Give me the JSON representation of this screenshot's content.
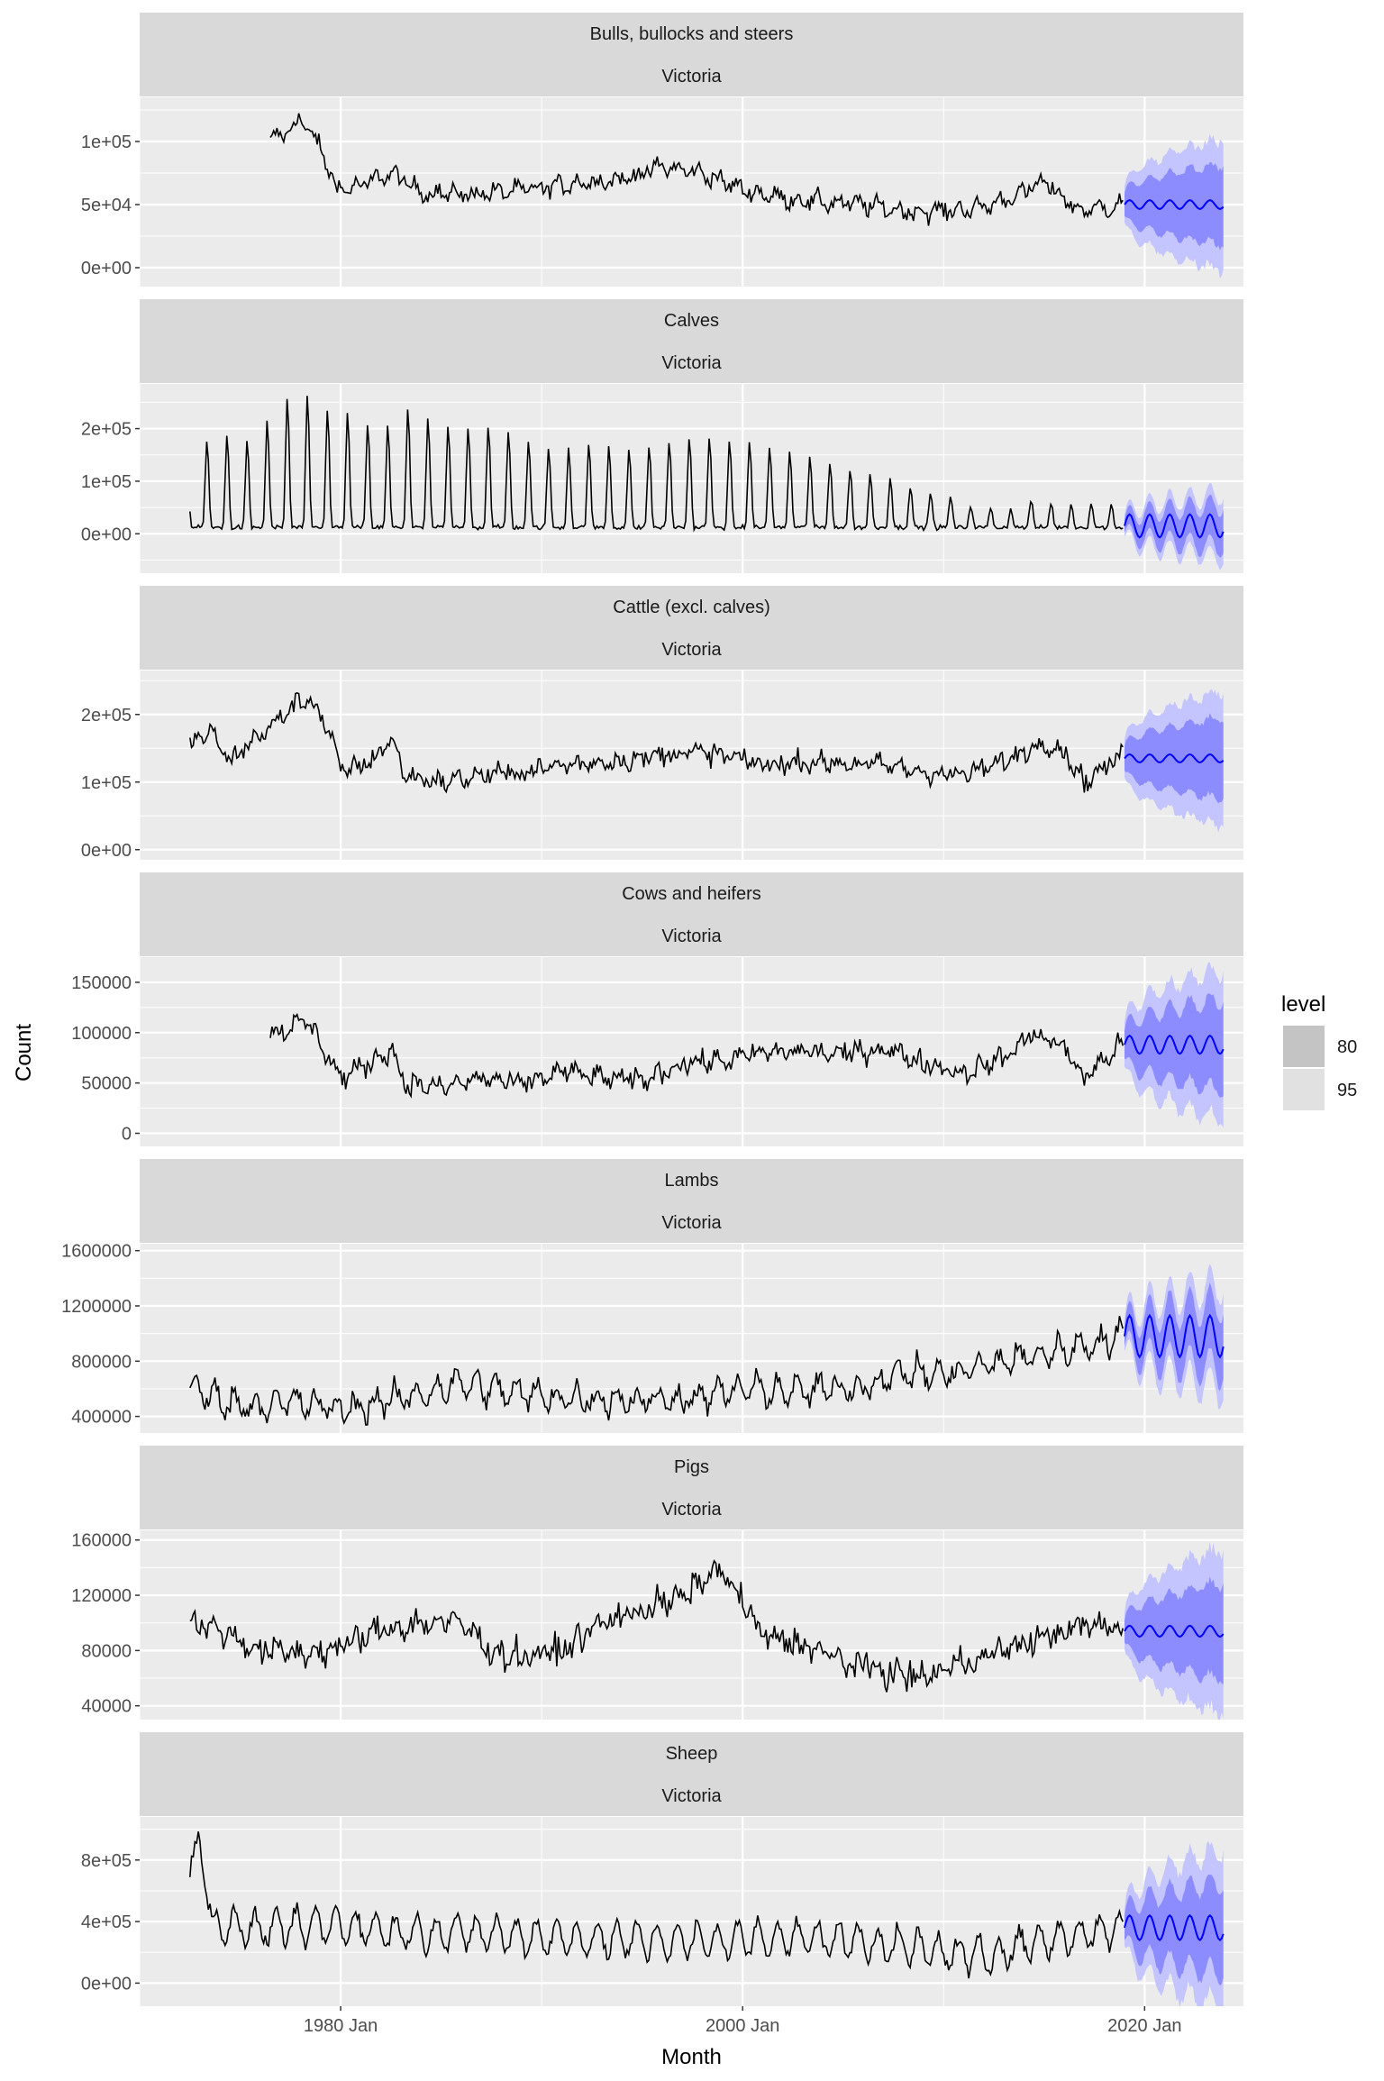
{
  "chart_data": {
    "type": "line",
    "subtype": "faceted time series with forecast fan",
    "xlabel": "Month",
    "ylabel": "Count",
    "x_ticks": [
      "1980 Jan",
      "2000 Jan",
      "2020 Jan"
    ],
    "x_range": [
      "1970 Jan",
      "2024 Dec"
    ],
    "observed_range": [
      "1972 Jul",
      "2018 Dec"
    ],
    "forecast_range": [
      "2019 Jan",
      "2023 Dec"
    ],
    "grid": true,
    "legend": {
      "title": "level",
      "placement": "right",
      "entries": [
        {
          "label": "80",
          "color": "#c4c4c4"
        },
        {
          "label": "95",
          "color": "#e1e1e1"
        }
      ]
    },
    "colors": {
      "observed_line": "#000000",
      "forecast_line": "#0000ff",
      "band_80": "#8c8cff",
      "band_95": "#c4c4ff",
      "panel_bg": "#ebebeb",
      "strip_bg": "#d9d9d9",
      "grid": "#ffffff"
    },
    "facets": [
      {
        "strip": [
          "Bulls, bullocks and steers",
          "Victoria"
        ],
        "ylim": [
          -15000,
          135000
        ],
        "y_ticks": [
          0,
          50000,
          100000
        ],
        "y_tick_labels": [
          "0e+00",
          "5e+04",
          "1e+05"
        ],
        "observed_start": "1976 Jul",
        "observed_anchors": [
          [
            1976.5,
            100000
          ],
          [
            1977.5,
            110000
          ],
          [
            1978.0,
            118000
          ],
          [
            1979.0,
            95000
          ],
          [
            1979.7,
            65000
          ],
          [
            1980.5,
            62000
          ],
          [
            1982.5,
            75000
          ],
          [
            1984.0,
            60000
          ],
          [
            1986.0,
            58000
          ],
          [
            1988.0,
            60000
          ],
          [
            1990.0,
            63000
          ],
          [
            1992.0,
            68000
          ],
          [
            1994.0,
            70000
          ],
          [
            1996.0,
            80000
          ],
          [
            1998.0,
            75000
          ],
          [
            2000.0,
            62000
          ],
          [
            2002.0,
            55000
          ],
          [
            2004.0,
            52000
          ],
          [
            2006.0,
            50000
          ],
          [
            2008.0,
            45000
          ],
          [
            2010.0,
            45000
          ],
          [
            2012.0,
            48000
          ],
          [
            2014.0,
            60000
          ],
          [
            2015.0,
            68000
          ],
          [
            2016.0,
            55000
          ],
          [
            2016.8,
            45000
          ],
          [
            2018.9,
            50000
          ]
        ],
        "seasonal_amplitude": 4000,
        "noise": 4500,
        "forecast": {
          "level": 50000,
          "seasonal_amplitude": 3500,
          "band80_halfwidth": [
            9000,
            32000
          ],
          "band95_halfwidth": [
            14000,
            52000
          ]
        }
      },
      {
        "strip": [
          "Calves",
          "Victoria"
        ],
        "ylim": [
          -75000,
          285000
        ],
        "y_ticks": [
          0,
          100000,
          200000
        ],
        "y_tick_labels": [
          "0e+00",
          "1e+05",
          "2e+05"
        ],
        "observed_start": "1972 Jul",
        "observed_anchors": [
          [
            1972.5,
            25000
          ],
          [
            2018.9,
            20000
          ]
        ],
        "seasonal_peaks": [
          [
            1972.5,
            170000
          ],
          [
            1974.0,
            190000
          ],
          [
            1975.0,
            170000
          ],
          [
            1976.0,
            210000
          ],
          [
            1977.0,
            260000
          ],
          [
            1978.0,
            265000
          ],
          [
            1979.0,
            240000
          ],
          [
            1980.0,
            235000
          ],
          [
            1981.0,
            210000
          ],
          [
            1982.0,
            200000
          ],
          [
            1983.0,
            245000
          ],
          [
            1984.0,
            225000
          ],
          [
            1985.0,
            205000
          ],
          [
            1986.0,
            205000
          ],
          [
            1987.0,
            210000
          ],
          [
            1988.0,
            200000
          ],
          [
            1989.0,
            180000
          ],
          [
            1990.0,
            165000
          ],
          [
            1991.0,
            165000
          ],
          [
            1992.0,
            170000
          ],
          [
            1993.0,
            170000
          ],
          [
            1994.0,
            160000
          ],
          [
            1995.0,
            165000
          ],
          [
            1996.0,
            175000
          ],
          [
            1997.0,
            185000
          ],
          [
            1998.0,
            185000
          ],
          [
            1999.0,
            175000
          ],
          [
            2000.0,
            180000
          ],
          [
            2001.0,
            170000
          ],
          [
            2002.0,
            160000
          ],
          [
            2003.0,
            150000
          ],
          [
            2004.0,
            140000
          ],
          [
            2005.0,
            125000
          ],
          [
            2006.0,
            115000
          ],
          [
            2007.0,
            110000
          ],
          [
            2008.0,
            95000
          ],
          [
            2009.0,
            80000
          ],
          [
            2010.0,
            75000
          ],
          [
            2011.0,
            55000
          ],
          [
            2012.0,
            50000
          ],
          [
            2013.0,
            45000
          ],
          [
            2014.0,
            65000
          ],
          [
            2015.0,
            60000
          ],
          [
            2016.0,
            55000
          ],
          [
            2017.0,
            60000
          ],
          [
            2018.0,
            55000
          ]
        ],
        "noise": 3000,
        "forecast": {
          "level": 15000,
          "seasonal_amplitude": 22000,
          "band80_halfwidth": [
            12000,
            40000
          ],
          "band95_halfwidth": [
            20000,
            60000
          ]
        }
      },
      {
        "strip": [
          "Cattle (excl. calves)",
          "Victoria"
        ],
        "ylim": [
          -15000,
          265000
        ],
        "y_ticks": [
          0,
          100000,
          200000
        ],
        "y_tick_labels": [
          "0e+00",
          "1e+05",
          "2e+05"
        ],
        "observed_start": "1972 Jul",
        "observed_anchors": [
          [
            1972.5,
            155000
          ],
          [
            1973.5,
            175000
          ],
          [
            1974.5,
            130000
          ],
          [
            1975.5,
            160000
          ],
          [
            1976.5,
            180000
          ],
          [
            1977.5,
            210000
          ],
          [
            1978.5,
            225000
          ],
          [
            1979.5,
            170000
          ],
          [
            1980.0,
            115000
          ],
          [
            1981.5,
            130000
          ],
          [
            1982.5,
            165000
          ],
          [
            1983.2,
            110000
          ],
          [
            1985.0,
            100000
          ],
          [
            1987.0,
            110000
          ],
          [
            1989.0,
            115000
          ],
          [
            1991.0,
            125000
          ],
          [
            1993.0,
            130000
          ],
          [
            1995.0,
            135000
          ],
          [
            1997.0,
            145000
          ],
          [
            1999.0,
            140000
          ],
          [
            2001.0,
            125000
          ],
          [
            2003.0,
            130000
          ],
          [
            2005.0,
            128000
          ],
          [
            2007.0,
            125000
          ],
          [
            2009.0,
            115000
          ],
          [
            2011.0,
            110000
          ],
          [
            2013.0,
            130000
          ],
          [
            2015.0,
            160000
          ],
          [
            2016.0,
            145000
          ],
          [
            2017.0,
            100000
          ],
          [
            2018.9,
            140000
          ]
        ],
        "seasonal_amplitude": 6000,
        "noise": 10000,
        "forecast": {
          "level": 135000,
          "seasonal_amplitude": 6000,
          "band80_halfwidth": [
            18000,
            60000
          ],
          "band95_halfwidth": [
            28000,
            100000
          ]
        }
      },
      {
        "strip": [
          "Cows and heifers",
          "Victoria"
        ],
        "ylim": [
          -13000,
          175000
        ],
        "y_ticks": [
          0,
          50000,
          100000,
          150000
        ],
        "y_tick_labels": [
          "0",
          "50000",
          "100000",
          "150000"
        ],
        "observed_start": "1976 Jul",
        "observed_anchors": [
          [
            1976.5,
            100000
          ],
          [
            1977.5,
            105000
          ],
          [
            1978.3,
            112000
          ],
          [
            1979.0,
            90000
          ],
          [
            1980.0,
            55000
          ],
          [
            1981.5,
            70000
          ],
          [
            1982.5,
            85000
          ],
          [
            1983.2,
            50000
          ],
          [
            1985.0,
            45000
          ],
          [
            1987.0,
            55000
          ],
          [
            1989.0,
            48000
          ],
          [
            1991.0,
            62000
          ],
          [
            1993.0,
            55000
          ],
          [
            1995.0,
            52000
          ],
          [
            1997.0,
            70000
          ],
          [
            1999.0,
            72000
          ],
          [
            2001.0,
            80000
          ],
          [
            2003.0,
            82000
          ],
          [
            2005.0,
            78000
          ],
          [
            2007.0,
            85000
          ],
          [
            2009.0,
            70000
          ],
          [
            2011.0,
            60000
          ],
          [
            2013.0,
            75000
          ],
          [
            2014.5,
            100000
          ],
          [
            2016.0,
            85000
          ],
          [
            2017.0,
            55000
          ],
          [
            2018.9,
            90000
          ]
        ],
        "seasonal_amplitude": 4000,
        "noise": 7000,
        "forecast": {
          "level": 88000,
          "seasonal_amplitude": 9000,
          "band80_halfwidth": [
            14000,
            45000
          ],
          "band95_halfwidth": [
            22000,
            75000
          ]
        }
      },
      {
        "strip": [
          "Lambs",
          "Victoria"
        ],
        "ylim": [
          280000,
          1650000
        ],
        "y_ticks": [
          400000,
          800000,
          1200000,
          1600000
        ],
        "y_tick_labels": [
          "400000",
          "800000",
          "1200000",
          "1600000"
        ],
        "observed_start": "1972 Jul",
        "observed_anchors": [
          [
            1972.5,
            600000
          ],
          [
            1975.0,
            480000
          ],
          [
            1978.0,
            500000
          ],
          [
            1980.0,
            450000
          ],
          [
            1983.0,
            530000
          ],
          [
            1986.0,
            640000
          ],
          [
            1989.0,
            560000
          ],
          [
            1992.0,
            530000
          ],
          [
            1995.0,
            520000
          ],
          [
            1998.0,
            540000
          ],
          [
            2000.0,
            600000
          ],
          [
            2003.0,
            580000
          ],
          [
            2006.0,
            620000
          ],
          [
            2008.0,
            720000
          ],
          [
            2010.0,
            700000
          ],
          [
            2013.0,
            800000
          ],
          [
            2016.0,
            880000
          ],
          [
            2018.9,
            980000
          ]
        ],
        "seasonal_amplitude": 80000,
        "noise": 55000,
        "forecast": {
          "level": 980000,
          "seasonal_amplitude": 150000,
          "band80_halfwidth": [
            70000,
            240000
          ],
          "band95_halfwidth": [
            110000,
            380000
          ]
        }
      },
      {
        "strip": [
          "Pigs",
          "Victoria"
        ],
        "ylim": [
          30000,
          167000
        ],
        "y_ticks": [
          40000,
          80000,
          120000,
          160000
        ],
        "y_tick_labels": [
          "40000",
          "80000",
          "120000",
          "160000"
        ],
        "observed_start": "1972 Jul",
        "observed_anchors": [
          [
            1972.5,
            100000
          ],
          [
            1974.0,
            95000
          ],
          [
            1976.0,
            80000
          ],
          [
            1978.0,
            78000
          ],
          [
            1980.0,
            82000
          ],
          [
            1982.0,
            95000
          ],
          [
            1984.0,
            100000
          ],
          [
            1986.0,
            100000
          ],
          [
            1987.5,
            80000
          ],
          [
            1989.0,
            75000
          ],
          [
            1991.0,
            80000
          ],
          [
            1993.0,
            100000
          ],
          [
            1995.0,
            110000
          ],
          [
            1997.0,
            118000
          ],
          [
            1998.8,
            140000
          ],
          [
            2000.0,
            115000
          ],
          [
            2001.0,
            90000
          ],
          [
            2003.0,
            85000
          ],
          [
            2005.0,
            72000
          ],
          [
            2007.0,
            65000
          ],
          [
            2009.0,
            60000
          ],
          [
            2011.0,
            72000
          ],
          [
            2013.0,
            80000
          ],
          [
            2015.0,
            90000
          ],
          [
            2017.0,
            98000
          ],
          [
            2018.9,
            96000
          ]
        ],
        "seasonal_amplitude": 4000,
        "noise": 7000,
        "forecast": {
          "level": 94000,
          "seasonal_amplitude": 4000,
          "band80_halfwidth": [
            8000,
            35000
          ],
          "band95_halfwidth": [
            13000,
            60000
          ]
        }
      },
      {
        "strip": [
          "Sheep",
          "Victoria"
        ],
        "ylim": [
          -150000,
          1080000
        ],
        "y_ticks": [
          0,
          400000,
          800000
        ],
        "y_tick_labels": [
          "0e+00",
          "4e+05",
          "8e+05"
        ],
        "observed_start": "1972 Jul",
        "observed_anchors": [
          [
            1972.5,
            700000
          ],
          [
            1973.0,
            950000
          ],
          [
            1973.6,
            380000
          ],
          [
            1976.0,
            350000
          ],
          [
            1980.0,
            380000
          ],
          [
            1983.0,
            330000
          ],
          [
            1986.0,
            330000
          ],
          [
            1990.0,
            300000
          ],
          [
            1994.0,
            280000
          ],
          [
            1998.0,
            270000
          ],
          [
            2002.0,
            300000
          ],
          [
            2006.0,
            270000
          ],
          [
            2010.0,
            200000
          ],
          [
            2012.0,
            170000
          ],
          [
            2014.0,
            250000
          ],
          [
            2016.0,
            300000
          ],
          [
            2018.9,
            360000
          ]
        ],
        "seasonal_amplitude": 110000,
        "noise": 35000,
        "forecast": {
          "level": 360000,
          "seasonal_amplitude": 80000,
          "band80_halfwidth": [
            80000,
            300000
          ],
          "band95_halfwidth": [
            120000,
            520000
          ]
        }
      }
    ]
  }
}
